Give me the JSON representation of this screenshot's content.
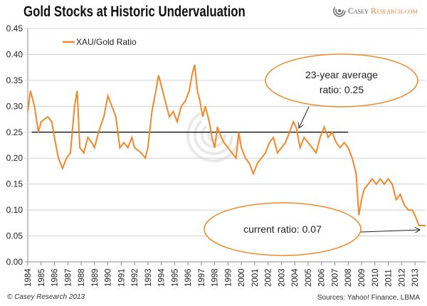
{
  "title": "Gold Stocks at Historic Undervaluation",
  "logo": {
    "text_a": "Casey ",
    "text_b": "Research.com"
  },
  "footer": {
    "copyright": "© Casey Research 2013",
    "sources": "Sources: Yahoo! Finance, LBMA"
  },
  "colors": {
    "series": "#f0892a",
    "average_line": "#000000",
    "grid": "#d0d0d0"
  },
  "chart_data": {
    "type": "line",
    "title": "Gold Stocks at Historic Undervaluation",
    "xlabel": "",
    "ylabel": "",
    "ylim": [
      0,
      0.45
    ],
    "xlim": [
      1984,
      2013.8
    ],
    "grid": "horizontal",
    "legend_position": "top-left",
    "y_ticks": [
      "0.00",
      "0.05",
      "0.10",
      "0.15",
      "0.20",
      "0.25",
      "0.30",
      "0.35",
      "0.40",
      "0.45"
    ],
    "x_ticks": [
      "1984",
      "1985",
      "1986",
      "1987",
      "1988",
      "1989",
      "1990",
      "1991",
      "1992",
      "1993",
      "1994",
      "1995",
      "1996",
      "1997",
      "1998",
      "1999",
      "2000",
      "2001",
      "2002",
      "2003",
      "2004",
      "2005",
      "2006",
      "2007",
      "2008",
      "2009",
      "2010",
      "2011",
      "2012",
      "2013"
    ],
    "series": [
      {
        "name": "XAU/Gold Ratio",
        "x": [
          1984.0,
          1984.2,
          1984.5,
          1984.8,
          1985.0,
          1985.5,
          1985.8,
          1986.0,
          1986.3,
          1986.6,
          1986.9,
          1987.2,
          1987.5,
          1987.7,
          1987.9,
          1988.2,
          1988.5,
          1988.8,
          1989.0,
          1989.3,
          1989.7,
          1990.0,
          1990.3,
          1990.6,
          1990.9,
          1991.2,
          1991.5,
          1991.8,
          1992.0,
          1992.5,
          1992.8,
          1993.0,
          1993.3,
          1993.6,
          1993.8,
          1994.0,
          1994.3,
          1994.6,
          1994.9,
          1995.2,
          1995.5,
          1995.8,
          1996.1,
          1996.3,
          1996.5,
          1996.7,
          1996.9,
          1997.1,
          1997.3,
          1997.6,
          1997.8,
          1998.0,
          1998.2,
          1998.5,
          1998.7,
          1999.0,
          1999.3,
          1999.6,
          1999.8,
          2000.0,
          2000.3,
          2000.6,
          2000.9,
          2001.2,
          2001.5,
          2001.8,
          2002.1,
          2002.4,
          2002.7,
          2003.0,
          2003.3,
          2003.6,
          2003.9,
          2004.1,
          2004.4,
          2004.7,
          2005.0,
          2005.3,
          2005.6,
          2005.9,
          2006.2,
          2006.5,
          2006.8,
          2007.1,
          2007.4,
          2007.7,
          2008.0,
          2008.3,
          2008.6,
          2008.8,
          2009.0,
          2009.2,
          2009.5,
          2009.8,
          2010.1,
          2010.4,
          2010.7,
          2011.0,
          2011.3,
          2011.6,
          2011.9,
          2012.2,
          2012.5,
          2012.8,
          2013.0,
          2013.3,
          2013.6,
          2013.8
        ],
        "values": [
          0.29,
          0.33,
          0.3,
          0.25,
          0.27,
          0.28,
          0.27,
          0.24,
          0.2,
          0.18,
          0.2,
          0.21,
          0.3,
          0.33,
          0.22,
          0.21,
          0.24,
          0.23,
          0.22,
          0.25,
          0.28,
          0.32,
          0.3,
          0.28,
          0.22,
          0.23,
          0.22,
          0.24,
          0.22,
          0.21,
          0.2,
          0.22,
          0.29,
          0.33,
          0.36,
          0.34,
          0.31,
          0.28,
          0.29,
          0.27,
          0.3,
          0.31,
          0.33,
          0.36,
          0.38,
          0.33,
          0.31,
          0.28,
          0.3,
          0.27,
          0.24,
          0.22,
          0.26,
          0.24,
          0.23,
          0.22,
          0.21,
          0.2,
          0.25,
          0.22,
          0.2,
          0.19,
          0.17,
          0.19,
          0.2,
          0.21,
          0.23,
          0.24,
          0.21,
          0.22,
          0.23,
          0.25,
          0.27,
          0.26,
          0.22,
          0.24,
          0.23,
          0.22,
          0.21,
          0.24,
          0.26,
          0.24,
          0.25,
          0.23,
          0.22,
          0.23,
          0.22,
          0.2,
          0.17,
          0.09,
          0.12,
          0.14,
          0.15,
          0.16,
          0.15,
          0.16,
          0.15,
          0.16,
          0.15,
          0.12,
          0.13,
          0.11,
          0.1,
          0.1,
          0.09,
          0.07,
          0.07,
          0.07
        ]
      }
    ],
    "average_line": {
      "value": 0.25,
      "x_range": [
        1984.3,
        2008.0
      ]
    },
    "annotations": [
      {
        "line1": "23-year average",
        "line2": "ratio: 0.25"
      },
      {
        "line1": "current ratio: 0.07"
      }
    ]
  }
}
